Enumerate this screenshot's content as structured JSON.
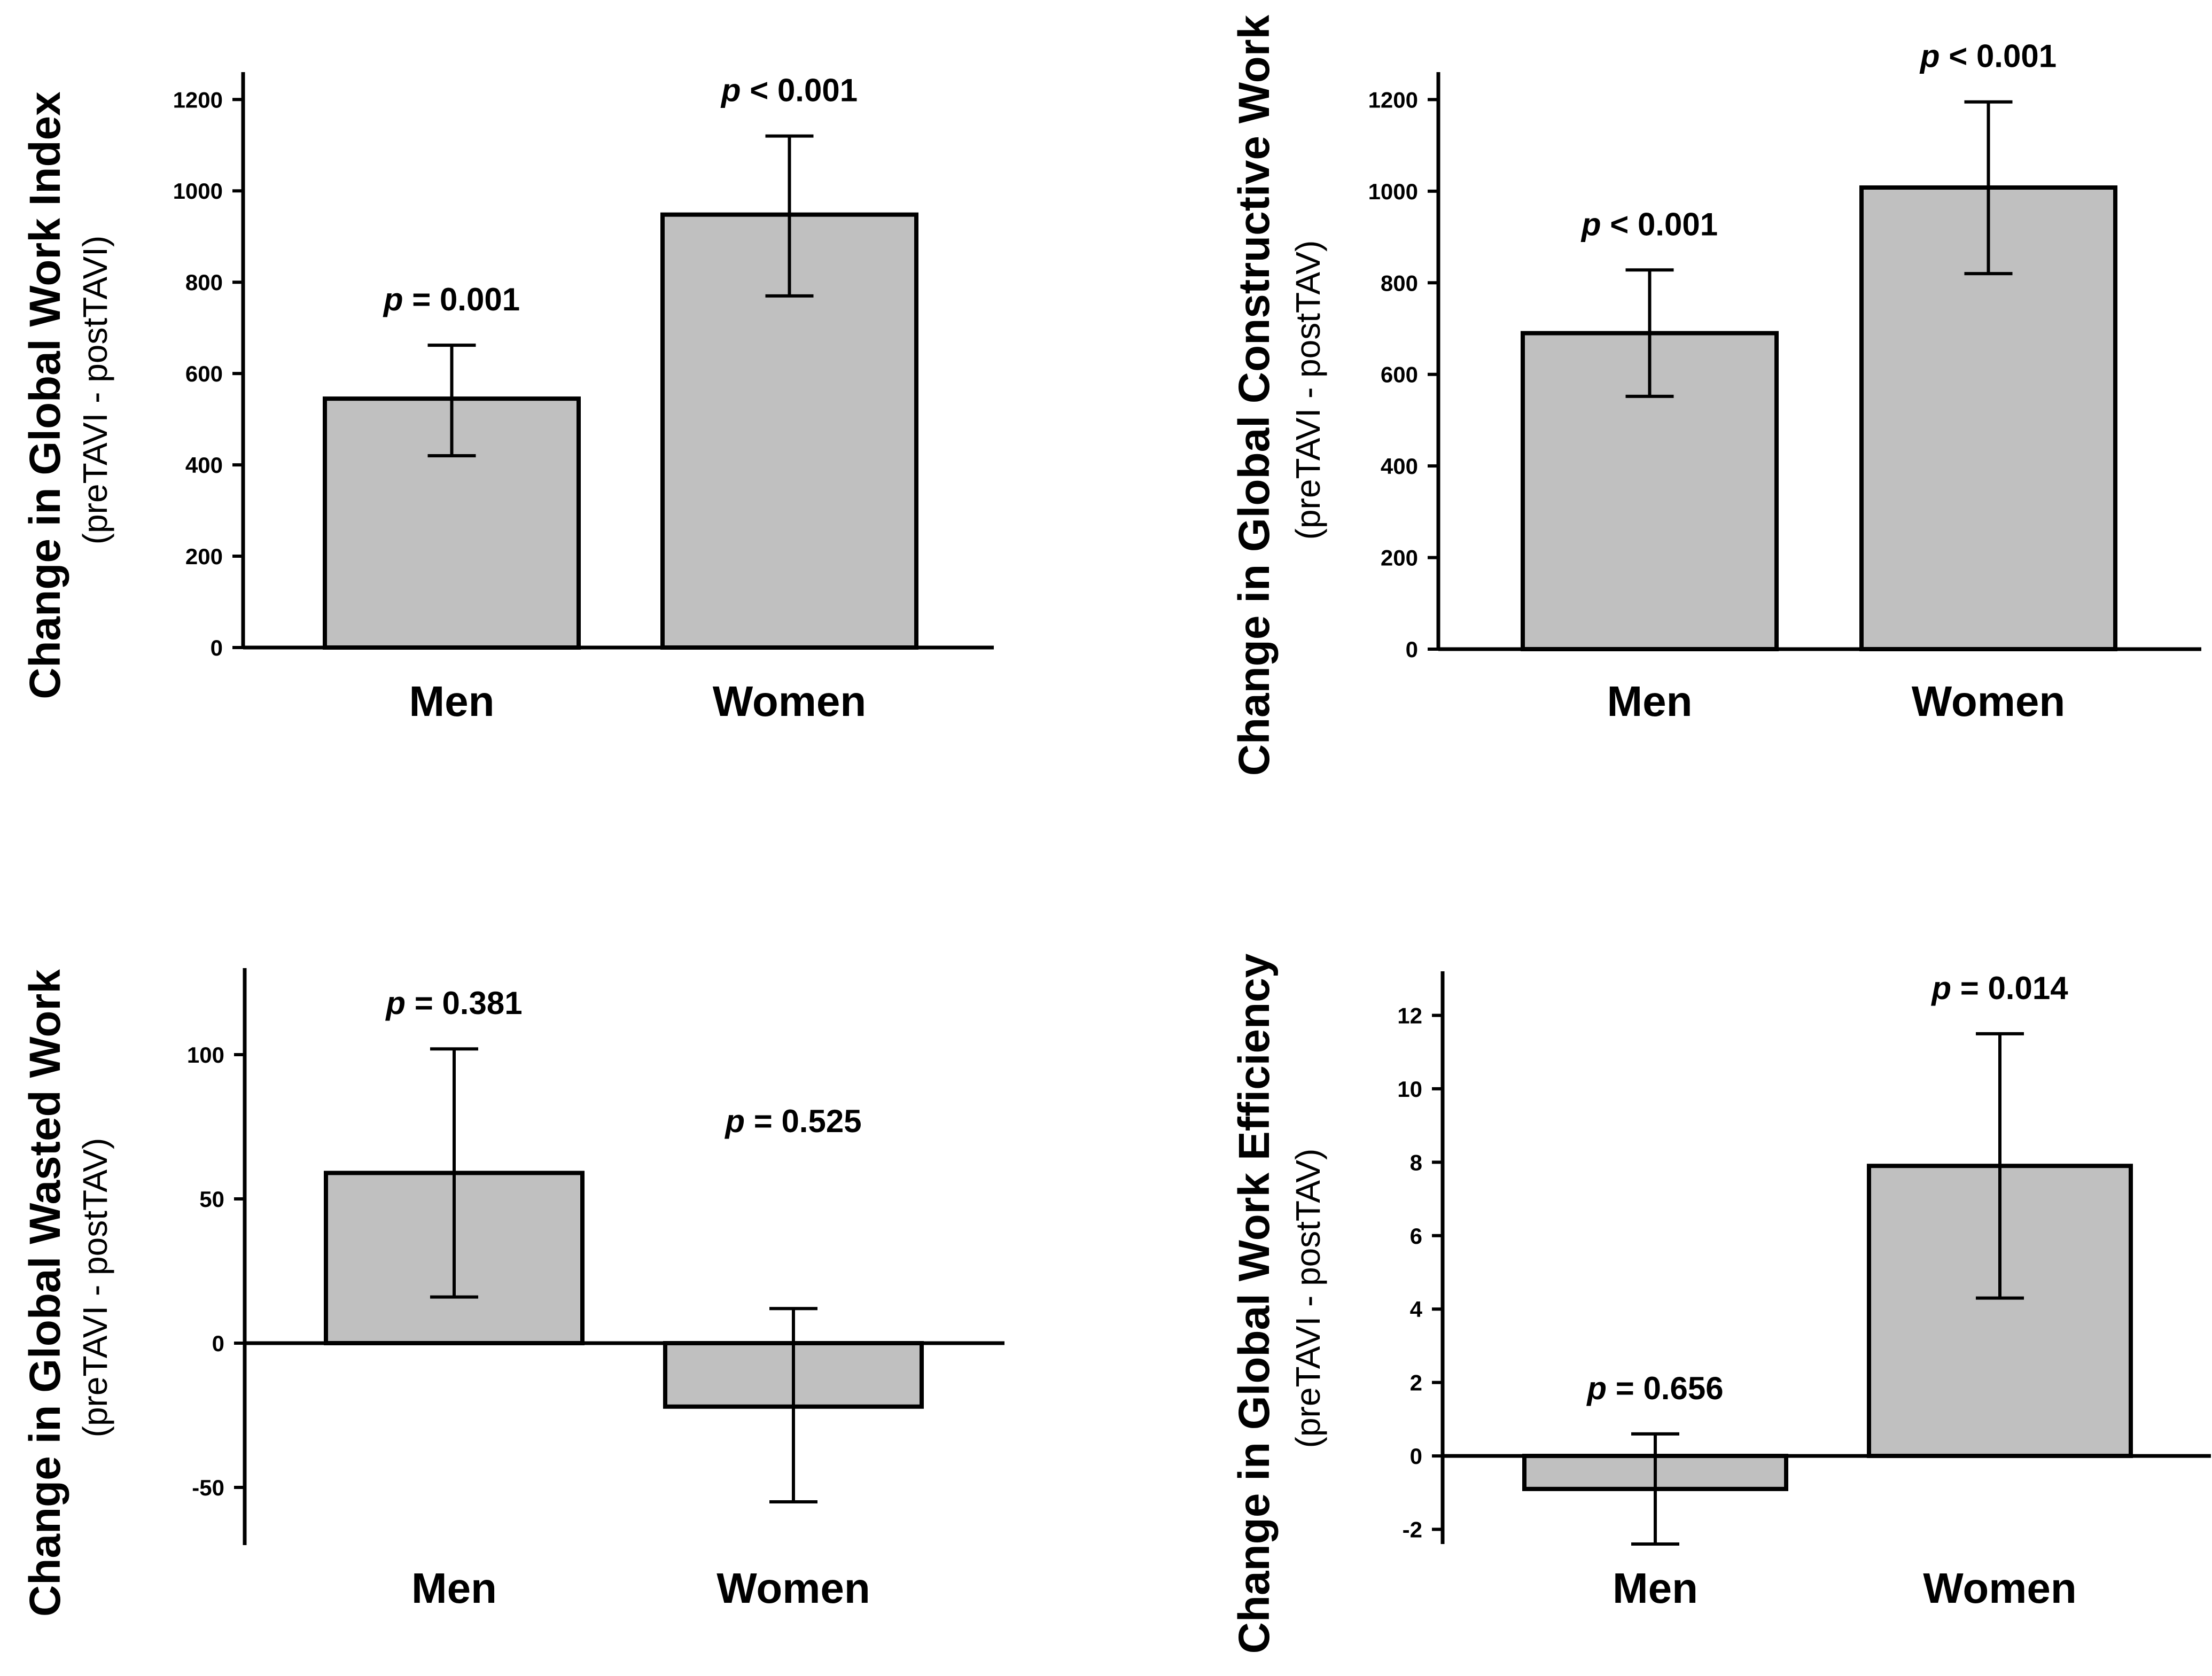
{
  "chart_data": [
    {
      "type": "bar",
      "ylabel": "Change in Global Work Index",
      "ylabel_sub": "(preTAVI - postTAVI)",
      "categories": [
        "Men",
        "Women"
      ],
      "values": [
        545,
        948
      ],
      "error_upper": [
        662,
        1120
      ],
      "error_lower": [
        420,
        770
      ],
      "annotations": [
        {
          "p": "p",
          "rest": " = 0.001"
        },
        {
          "p": "p",
          "rest": " < 0.001"
        }
      ],
      "yticks": [
        0,
        200,
        400,
        600,
        800,
        1000,
        1200
      ],
      "ylim": [
        0,
        1260
      ],
      "baseline": 0
    },
    {
      "type": "bar",
      "ylabel": "Change in Global Constructive Work",
      "ylabel_sub": "(preTAVI - postTAV)",
      "categories": [
        "Men",
        "Women"
      ],
      "values": [
        690,
        1008
      ],
      "error_upper": [
        828,
        1195
      ],
      "error_lower": [
        552,
        820
      ],
      "annotations": [
        {
          "p": "p",
          "rest": " < 0.001"
        },
        {
          "p": "p",
          "rest": " < 0.001"
        }
      ],
      "yticks": [
        0,
        200,
        400,
        600,
        800,
        1000,
        1200
      ],
      "ylim": [
        0,
        1260
      ],
      "baseline": 0
    },
    {
      "type": "bar",
      "ylabel": "Change in Global Wasted Work",
      "ylabel_sub": "(preTAVI - postTAV)",
      "categories": [
        "Men",
        "Women"
      ],
      "values": [
        59,
        -22
      ],
      "error_upper": [
        102,
        12
      ],
      "error_lower": [
        16,
        -55
      ],
      "annotations": [
        {
          "p": "p",
          "rest": " = 0.381"
        },
        {
          "p": "p",
          "rest": " = 0.525"
        }
      ],
      "yticks": [
        -50,
        0,
        50,
        100
      ],
      "yticklabels": [
        "-50",
        "0",
        "50",
        "100"
      ],
      "ylim": [
        -70,
        130
      ],
      "baseline": 0
    },
    {
      "type": "bar",
      "ylabel": "Change in Global Work Efficiency",
      "ylabel_sub": "(preTAVI - postTAV)",
      "categories": [
        "Men",
        "Women"
      ],
      "values": [
        -0.9,
        7.9
      ],
      "error_upper": [
        0.6,
        11.5
      ],
      "error_lower": [
        -2.4,
        4.3
      ],
      "annotations": [
        {
          "p": "p",
          "rest": " = 0.656"
        },
        {
          "p": "p",
          "rest": " = 0.014"
        }
      ],
      "yticks": [
        -2,
        0,
        2,
        4,
        6,
        8,
        10,
        12
      ],
      "yticklabels": [
        "-2",
        "0",
        "2",
        "4",
        "6",
        "8",
        "10",
        "12"
      ],
      "ylim": [
        -2.4,
        13.2
      ],
      "baseline": 0
    }
  ],
  "colors": {
    "bar_fill": "#c0c0c0",
    "stroke": "#000000",
    "background": "#ffffff"
  }
}
